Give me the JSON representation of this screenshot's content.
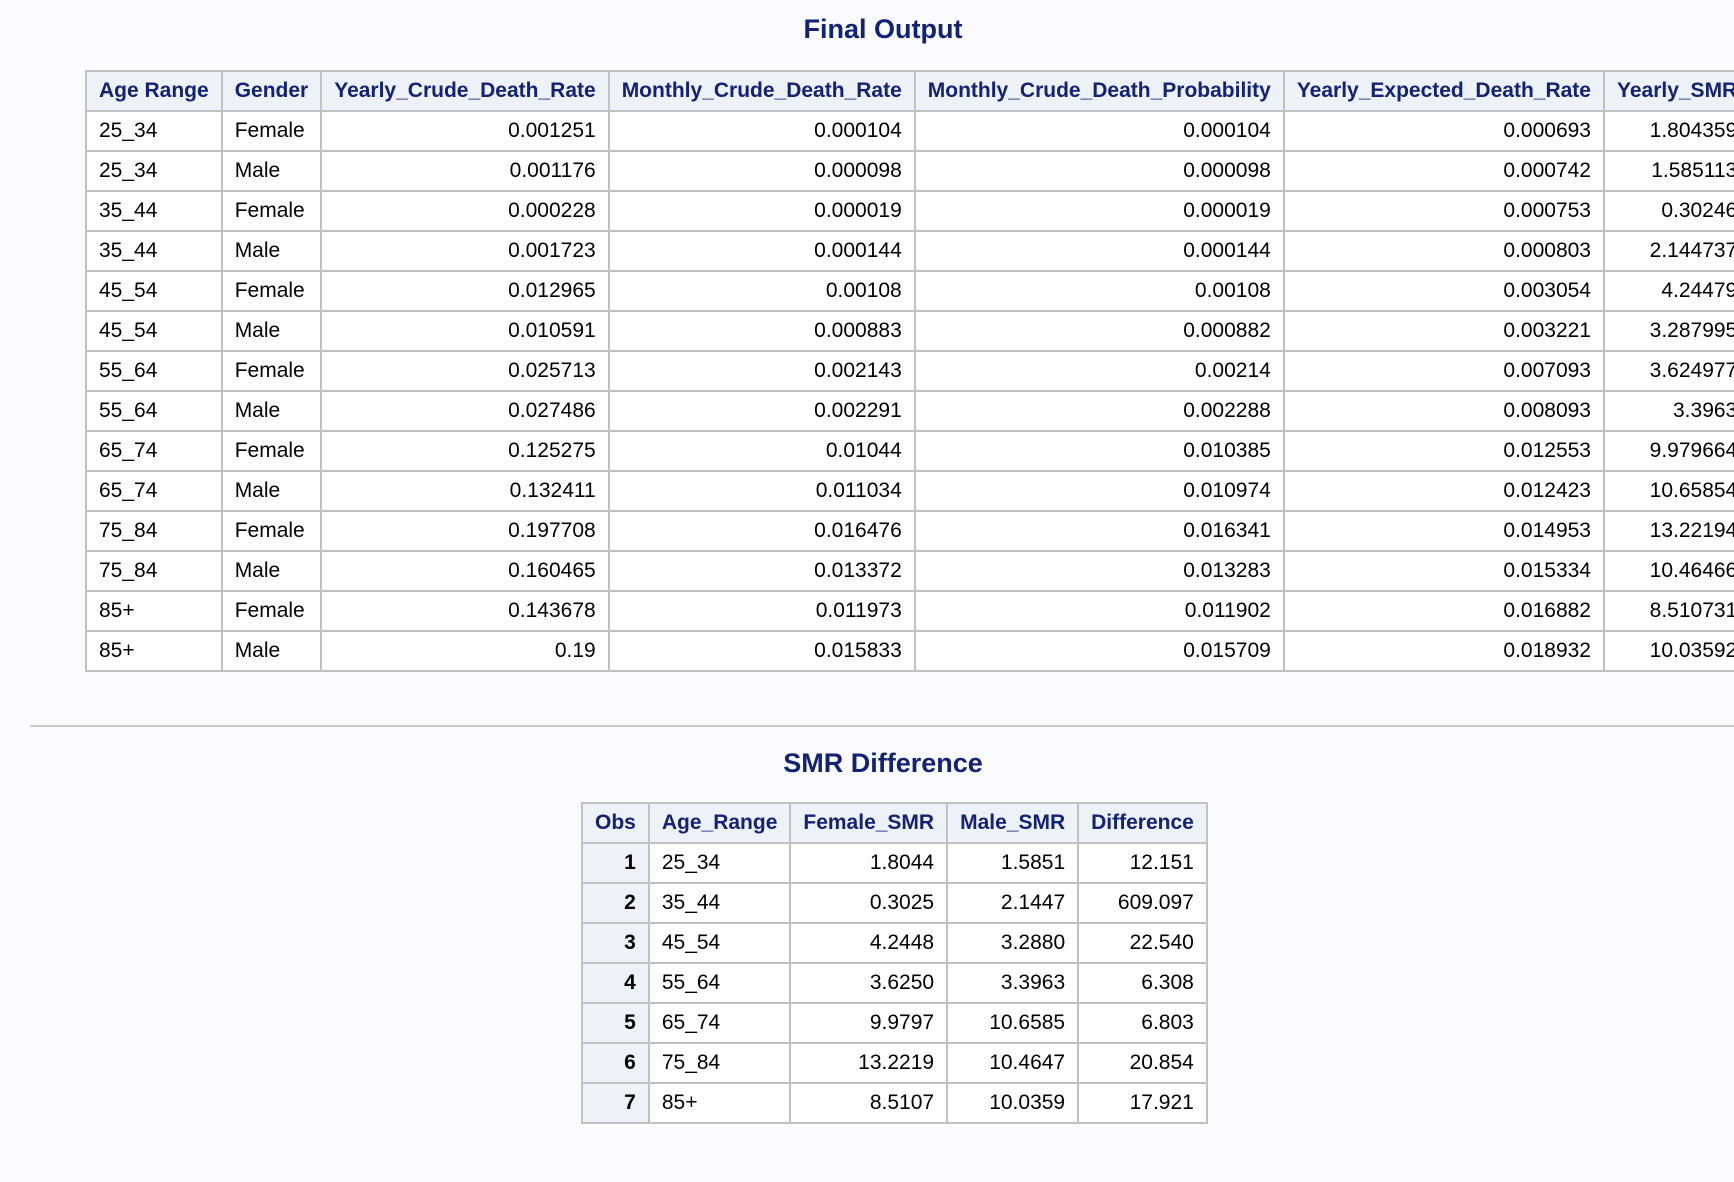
{
  "final_output": {
    "title": "Final Output",
    "columns": [
      "Age Range",
      "Gender",
      "Yearly_Crude_Death_Rate",
      "Monthly_Crude_Death_Rate",
      "Monthly_Crude_Death_Probability",
      "Yearly_Expected_Death_Rate",
      "Yearly_SMR"
    ],
    "rows": [
      [
        "25_34",
        "Female",
        "0.001251",
        "0.000104",
        "0.000104",
        "0.000693",
        "1.804359"
      ],
      [
        "25_34",
        "Male",
        "0.001176",
        "0.000098",
        "0.000098",
        "0.000742",
        "1.585113"
      ],
      [
        "35_44",
        "Female",
        "0.000228",
        "0.000019",
        "0.000019",
        "0.000753",
        "0.30246"
      ],
      [
        "35_44",
        "Male",
        "0.001723",
        "0.000144",
        "0.000144",
        "0.000803",
        "2.144737"
      ],
      [
        "45_54",
        "Female",
        "0.012965",
        "0.00108",
        "0.00108",
        "0.003054",
        "4.24479"
      ],
      [
        "45_54",
        "Male",
        "0.010591",
        "0.000883",
        "0.000882",
        "0.003221",
        "3.287995"
      ],
      [
        "55_64",
        "Female",
        "0.025713",
        "0.002143",
        "0.00214",
        "0.007093",
        "3.624977"
      ],
      [
        "55_64",
        "Male",
        "0.027486",
        "0.002291",
        "0.002288",
        "0.008093",
        "3.3963"
      ],
      [
        "65_74",
        "Female",
        "0.125275",
        "0.01044",
        "0.010385",
        "0.012553",
        "9.979664"
      ],
      [
        "65_74",
        "Male",
        "0.132411",
        "0.011034",
        "0.010974",
        "0.012423",
        "10.65854"
      ],
      [
        "75_84",
        "Female",
        "0.197708",
        "0.016476",
        "0.016341",
        "0.014953",
        "13.22194"
      ],
      [
        "75_84",
        "Male",
        "0.160465",
        "0.013372",
        "0.013283",
        "0.015334",
        "10.46466"
      ],
      [
        "85+",
        "Female",
        "0.143678",
        "0.011973",
        "0.011902",
        "0.016882",
        "8.510731"
      ],
      [
        "85+",
        "Male",
        "0.19",
        "0.015833",
        "0.015709",
        "0.018932",
        "10.03592"
      ]
    ]
  },
  "smr_difference": {
    "title": "SMR Difference",
    "columns": [
      "Obs",
      "Age_Range",
      "Female_SMR",
      "Male_SMR",
      "Difference"
    ],
    "rows": [
      [
        "1",
        "25_34",
        "1.8044",
        "1.5851",
        "12.151"
      ],
      [
        "2",
        "35_44",
        "0.3025",
        "2.1447",
        "609.097"
      ],
      [
        "3",
        "45_54",
        "4.2448",
        "3.2880",
        "22.540"
      ],
      [
        "4",
        "55_64",
        "3.6250",
        "3.3963",
        "6.308"
      ],
      [
        "5",
        "65_74",
        "9.9797",
        "10.6585",
        "6.803"
      ],
      [
        "6",
        "75_84",
        "13.2219",
        "10.4647",
        "20.854"
      ],
      [
        "7",
        "85+",
        "8.5107",
        "10.0359",
        "17.921"
      ]
    ]
  }
}
